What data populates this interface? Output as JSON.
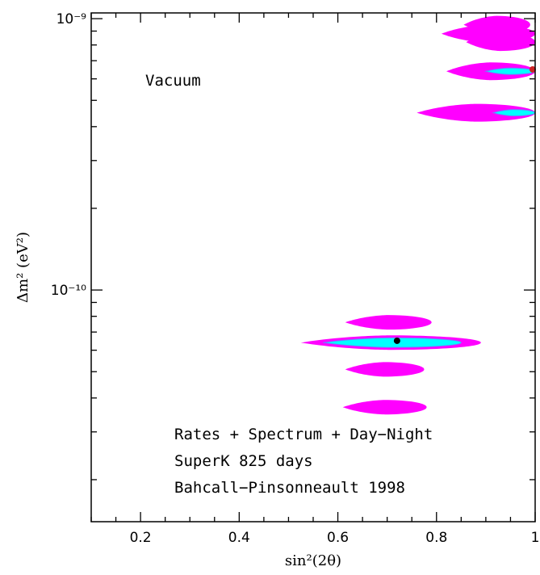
{
  "chart_data": {
    "type": "contour",
    "title": "",
    "xlabel": "sin²(2θ)",
    "ylabel": "Δm²  (eV²)",
    "xlim": [
      0.1,
      1.0
    ],
    "ylim": [
      1.4e-11,
      1.05e-09
    ],
    "yscale": "log",
    "x_ticks": [
      {
        "value": 0.2,
        "label": "0.2"
      },
      {
        "value": 0.4,
        "label": "0.4"
      },
      {
        "value": 0.6,
        "label": "0.6"
      },
      {
        "value": 0.8,
        "label": "0.8"
      },
      {
        "value": 1.0,
        "label": "1"
      }
    ],
    "y_major_ticks": [
      {
        "value": 1e-10,
        "label": "10⁻¹⁰"
      },
      {
        "value": 1e-09,
        "label": "10⁻⁹"
      }
    ],
    "y_minor_ticks": [
      2e-11,
      3e-11,
      4e-11,
      5e-11,
      6e-11,
      7e-11,
      8e-11,
      9e-11,
      2e-10,
      3e-10,
      4e-10,
      5e-10,
      6e-10,
      7e-10,
      8e-10,
      9e-10
    ],
    "annotations": {
      "region_label": "Vacuum",
      "lines": [
        "Rates + Spectrum + Day−Night",
        "SuperK 825 days",
        "Bahcall−Pinsonneault 1998"
      ]
    },
    "colors": {
      "outer_region": "#ff00ff",
      "inner_region": "#00ffff",
      "inner_outline": "#7777ff",
      "best_fit": "#000000",
      "edge_point": "#cc2222"
    },
    "regions_outer": [
      {
        "y": 9.5e-10,
        "x_min": 0.855,
        "x_max": 0.99
      },
      {
        "y": 8.8e-10,
        "x_min": 0.81,
        "x_max": 1.0
      },
      {
        "y": 8.2e-10,
        "x_min": 0.86,
        "x_max": 1.0
      },
      {
        "y": 6.4e-10,
        "x_min": 0.82,
        "x_max": 1.0
      },
      {
        "y": 4.5e-10,
        "x_min": 0.76,
        "x_max": 1.0
      },
      {
        "y": 7.6e-11,
        "x_min": 0.615,
        "x_max": 0.79
      },
      {
        "y": 6.4e-11,
        "x_min": 0.525,
        "x_max": 0.89
      },
      {
        "y": 5.1e-11,
        "x_min": 0.615,
        "x_max": 0.775
      },
      {
        "y": 3.7e-11,
        "x_min": 0.61,
        "x_max": 0.78
      }
    ],
    "regions_inner": [
      {
        "y": 6.4e-10,
        "x_min": 0.9,
        "x_max": 1.0
      },
      {
        "y": 4.5e-10,
        "x_min": 0.915,
        "x_max": 1.0
      },
      {
        "y": 6.4e-11,
        "x_min": 0.57,
        "x_max": 0.85
      }
    ],
    "best_fit_points": [
      {
        "x": 0.72,
        "y": 6.5e-11
      },
      {
        "x": 0.995,
        "y": 6.5e-10
      }
    ]
  }
}
